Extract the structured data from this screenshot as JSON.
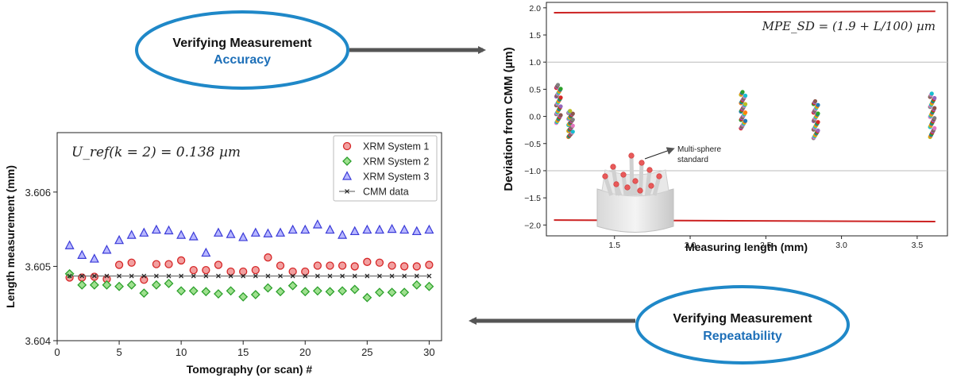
{
  "callouts": {
    "accuracy": {
      "line1": "Verifying Measurement",
      "line2": "Accuracy"
    },
    "repeatability": {
      "line1": "Verifying Measurement",
      "line2": "Repeatability"
    }
  },
  "colors": {
    "ellipse_stroke": "#1f88c8",
    "callout_accent": "#1d6fb8",
    "arrow": "#555555",
    "limit_line": "#cc2222"
  },
  "chart_data": [
    {
      "type": "scatter",
      "title": "",
      "annotation": "U_ref(k = 2) = 0.138 µm",
      "xlabel": "Tomography (or scan) #",
      "ylabel": "Length measurement (mm)",
      "xlim": [
        0,
        31
      ],
      "ylim": [
        3.604,
        3.6068
      ],
      "xticks": [
        0,
        5,
        10,
        15,
        20,
        25,
        30
      ],
      "yticks": [
        3.604,
        3.605,
        3.606
      ],
      "ytick_labels": [
        "3.604",
        "3.605",
        "3.606"
      ],
      "legend_position": "top-right",
      "grid": false,
      "x": [
        1,
        2,
        3,
        4,
        5,
        6,
        7,
        8,
        9,
        10,
        11,
        12,
        13,
        14,
        15,
        16,
        17,
        18,
        19,
        20,
        21,
        22,
        23,
        24,
        25,
        26,
        27,
        28,
        29,
        30
      ],
      "series": [
        {
          "name": "XRM System 1",
          "marker": "circle",
          "color": "#d62728",
          "values": [
            3.60485,
            3.60485,
            3.60486,
            3.60483,
            3.60502,
            3.60505,
            3.60482,
            3.60503,
            3.60503,
            3.60508,
            3.60495,
            3.60495,
            3.60502,
            3.60493,
            3.60493,
            3.60495,
            3.60512,
            3.60501,
            3.60493,
            3.60493,
            3.60501,
            3.60501,
            3.60501,
            3.605,
            3.60506,
            3.60505,
            3.60501,
            3.605,
            3.605,
            3.60502
          ]
        },
        {
          "name": "XRM System 2",
          "marker": "diamond",
          "color": "#2ca02c",
          "values": [
            3.6049,
            3.60475,
            3.60475,
            3.60475,
            3.60473,
            3.60475,
            3.60464,
            3.60475,
            3.60477,
            3.60467,
            3.60467,
            3.60466,
            3.60463,
            3.60467,
            3.60459,
            3.60462,
            3.60471,
            3.60466,
            3.60474,
            3.60466,
            3.60467,
            3.60466,
            3.60467,
            3.60469,
            3.60458,
            3.60465,
            3.60465,
            3.60465,
            3.60475,
            3.60473
          ]
        },
        {
          "name": "XRM System 3",
          "marker": "triangle",
          "color": "#3a3ad8",
          "values": [
            3.60528,
            3.60515,
            3.6051,
            3.60522,
            3.60535,
            3.60542,
            3.60545,
            3.60549,
            3.60548,
            3.60542,
            3.6054,
            3.60518,
            3.60545,
            3.60543,
            3.60539,
            3.60545,
            3.60544,
            3.60545,
            3.60549,
            3.60549,
            3.60556,
            3.60549,
            3.60542,
            3.60547,
            3.60549,
            3.60549,
            3.6055,
            3.60549,
            3.60547,
            3.60549
          ]
        },
        {
          "name": "CMM data",
          "marker": "x",
          "color": "#222222",
          "line": true,
          "values": [
            3.60487,
            3.60487,
            3.60487,
            3.60487,
            3.60487,
            3.60487,
            3.60487,
            3.60487,
            3.60487,
            3.60487,
            3.60487,
            3.60487,
            3.60487,
            3.60487,
            3.60487,
            3.60487,
            3.60487,
            3.60487,
            3.60487,
            3.60487,
            3.60487,
            3.60487,
            3.60487,
            3.60487,
            3.60487,
            3.60487,
            3.60487,
            3.60487,
            3.60487,
            3.60487
          ]
        }
      ]
    },
    {
      "type": "scatter",
      "title": "",
      "annotation": "MPE_SD = (1.9 + L/100) µm",
      "xlabel": "Measuring length (mm)",
      "ylabel": "Deviation from CMM (µm)",
      "xlim": [
        1.05,
        3.7
      ],
      "ylim": [
        -2.2,
        2.1
      ],
      "xticks": [
        1.5,
        2.0,
        2.5,
        3.0,
        3.5
      ],
      "xtick_labels": [
        "1.5",
        "2.0",
        "2.5",
        "3.0",
        "3.5"
      ],
      "yticks": [
        -2.0,
        -1.5,
        -1.0,
        -0.5,
        0.0,
        0.5,
        1.0,
        1.5,
        2.0
      ],
      "ytick_labels": [
        "−2.0",
        "−1.5",
        "−1.0",
        "−0.5",
        "0.0",
        "0.5",
        "1.0",
        "1.5",
        "2.0"
      ],
      "grid": "horizontal at ±1.0",
      "limit_lines": [
        {
          "x": [
            1.1,
            3.62
          ],
          "y": [
            1.91,
            1.936
          ]
        },
        {
          "x": [
            1.1,
            3.62
          ],
          "y": [
            -1.91,
            -1.936
          ]
        }
      ],
      "clusters": [
        {
          "x": 1.13,
          "y_min": -0.12,
          "y_max": 0.58
        },
        {
          "x": 1.21,
          "y_min": -0.38,
          "y_max": 0.1
        },
        {
          "x": 2.35,
          "y_min": -0.22,
          "y_max": 0.45
        },
        {
          "x": 2.83,
          "y_min": -0.4,
          "y_max": 0.28
        },
        {
          "x": 3.6,
          "y_min": -0.38,
          "y_max": 0.42
        }
      ],
      "cluster_colors": [
        "#e377c2",
        "#17becf",
        "#bcbd22",
        "#ff7f0e",
        "#1f77b4",
        "#2ca02c",
        "#d62728",
        "#9467bd",
        "#8c564b",
        "#7f7f7f"
      ],
      "inset_label": [
        "Multi-sphere",
        "standard"
      ]
    }
  ]
}
